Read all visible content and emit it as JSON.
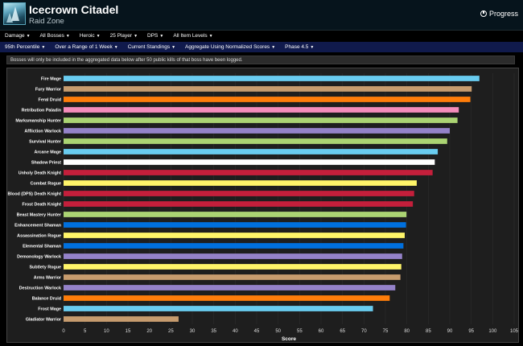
{
  "header": {
    "title": "Icecrown Citadel",
    "subtitle": "Raid Zone",
    "progress_label": "Progress",
    "icon": "icecrown-zone-icon"
  },
  "filters_row1": [
    {
      "label": "Damage"
    },
    {
      "label": "All Bosses"
    },
    {
      "label": "Heroic"
    },
    {
      "label": "25 Player"
    },
    {
      "label": "DPS"
    },
    {
      "label": "All Item Levels"
    }
  ],
  "filters_row2": [
    {
      "label": "95th Percentile"
    },
    {
      "label": "Over a Range of 1 Week"
    },
    {
      "label": "Current Standings"
    },
    {
      "label": "Aggregate Using Normalized Scores"
    },
    {
      "label": "Phase 4.5"
    }
  ],
  "notice": "Bosses will only be included in the aggregated data below after 50 public kills of that boss have been logged.",
  "chart_data": {
    "type": "bar",
    "orientation": "horizontal",
    "xlabel": "Score",
    "xlim": [
      0,
      105
    ],
    "xticks": [
      0,
      5,
      10,
      15,
      20,
      25,
      30,
      35,
      40,
      45,
      50,
      55,
      60,
      65,
      70,
      75,
      80,
      85,
      90,
      95,
      100,
      105
    ],
    "grid": true,
    "categories": [
      "Fire Mage",
      "Fury Warrior",
      "Feral Druid",
      "Retribution Paladin",
      "Marksmanship Hunter",
      "Affliction Warlock",
      "Survival Hunter",
      "Arcane Mage",
      "Shadow Priest",
      "Unholy Death Knight",
      "Combat Rogue",
      "Blood (DPS) Death Knight",
      "Frost Death Knight",
      "Beast Mastery Hunter",
      "Enhancement Shaman",
      "Assassination Rogue",
      "Elemental Shaman",
      "Demonology Warlock",
      "Subtlety Rogue",
      "Arms Warrior",
      "Destruction Warlock",
      "Balance Druid",
      "Frost Mage",
      "Gladiator Warrior"
    ],
    "values": [
      96.9,
      95.1,
      94.8,
      92.1,
      91.8,
      90.0,
      89.4,
      87.2,
      86.5,
      86.0,
      82.3,
      81.7,
      81.4,
      79.9,
      79.8,
      79.5,
      79.2,
      78.9,
      78.7,
      78.5,
      77.3,
      76.0,
      72.1,
      26.8
    ],
    "colors": [
      "#69ccf0",
      "#c79c6e",
      "#ff7d0a",
      "#f58cba",
      "#abd473",
      "#9482c9",
      "#abd473",
      "#69ccf0",
      "#ffffff",
      "#c41f3b",
      "#fff569",
      "#c41f3b",
      "#c41f3b",
      "#abd473",
      "#0070de",
      "#fff569",
      "#0070de",
      "#9482c9",
      "#fff569",
      "#c79c6e",
      "#9482c9",
      "#ff7d0a",
      "#69ccf0",
      "#c79c6e"
    ]
  }
}
